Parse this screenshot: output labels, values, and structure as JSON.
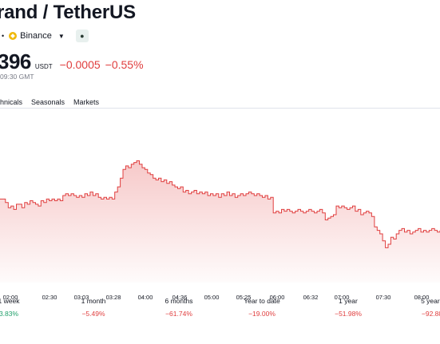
{
  "header": {
    "title": "rand / TetherUS",
    "separator": "•",
    "exchange": "Binance",
    "badge_icon": "market-status-icon"
  },
  "quote": {
    "price": "396",
    "currency": "USDT",
    "change": "−0.0005",
    "change_pct": "−0.55%",
    "time": "09:30 GMT"
  },
  "tabs": [
    "hnicals",
    "Seasonals",
    "Markets"
  ],
  "colors": {
    "negative": "#e03e3e",
    "positive": "#22a06b",
    "line": "#e03e3e"
  },
  "chart_data": {
    "type": "area",
    "x_labels": [
      "02:00",
      "02:30",
      "03:03",
      "03:28",
      "04:00",
      "04:36",
      "05:00",
      "05:25",
      "06:00",
      "06:32",
      "07:00",
      "07:30",
      "08:00"
    ],
    "y": [
      0.48,
      0.48,
      0.46,
      0.43,
      0.44,
      0.42,
      0.45,
      0.45,
      0.43,
      0.46,
      0.45,
      0.47,
      0.46,
      0.45,
      0.44,
      0.47,
      0.46,
      0.48,
      0.47,
      0.48,
      0.47,
      0.48,
      0.47,
      0.5,
      0.51,
      0.5,
      0.51,
      0.5,
      0.49,
      0.5,
      0.49,
      0.51,
      0.5,
      0.52,
      0.5,
      0.51,
      0.49,
      0.48,
      0.49,
      0.48,
      0.49,
      0.48,
      0.52,
      0.55,
      0.6,
      0.65,
      0.67,
      0.66,
      0.68,
      0.69,
      0.7,
      0.68,
      0.66,
      0.65,
      0.63,
      0.62,
      0.6,
      0.59,
      0.6,
      0.58,
      0.59,
      0.57,
      0.58,
      0.56,
      0.55,
      0.54,
      0.55,
      0.52,
      0.53,
      0.51,
      0.52,
      0.53,
      0.51,
      0.52,
      0.51,
      0.52,
      0.5,
      0.51,
      0.5,
      0.51,
      0.49,
      0.51,
      0.5,
      0.52,
      0.5,
      0.51,
      0.49,
      0.5,
      0.51,
      0.5,
      0.51,
      0.52,
      0.51,
      0.5,
      0.51,
      0.5,
      0.49,
      0.5,
      0.48,
      0.49,
      0.4,
      0.41,
      0.4,
      0.42,
      0.41,
      0.42,
      0.41,
      0.4,
      0.41,
      0.42,
      0.41,
      0.4,
      0.41,
      0.42,
      0.41,
      0.4,
      0.41,
      0.42,
      0.4,
      0.36,
      0.37,
      0.38,
      0.39,
      0.44,
      0.43,
      0.44,
      0.43,
      0.42,
      0.43,
      0.44,
      0.41,
      0.42,
      0.39,
      0.4,
      0.41,
      0.4,
      0.38,
      0.32,
      0.3,
      0.28,
      0.24,
      0.2,
      0.22,
      0.26,
      0.25,
      0.28,
      0.3,
      0.31,
      0.29,
      0.3,
      0.28,
      0.29,
      0.3,
      0.31,
      0.29,
      0.3,
      0.29,
      0.3,
      0.31,
      0.3,
      0.29,
      0.3
    ]
  },
  "performance": [
    {
      "label": "1 week",
      "value": "3.83%",
      "sign": "pos"
    },
    {
      "label": "1 month",
      "value": "−5.49%",
      "sign": "neg"
    },
    {
      "label": "6 months",
      "value": "−61.74%",
      "sign": "neg"
    },
    {
      "label": "Year to date",
      "value": "−19.00%",
      "sign": "neg"
    },
    {
      "label": "1 year",
      "value": "−51.98%",
      "sign": "neg"
    },
    {
      "label": "5 years",
      "value": "−92.88",
      "sign": "neg"
    }
  ]
}
